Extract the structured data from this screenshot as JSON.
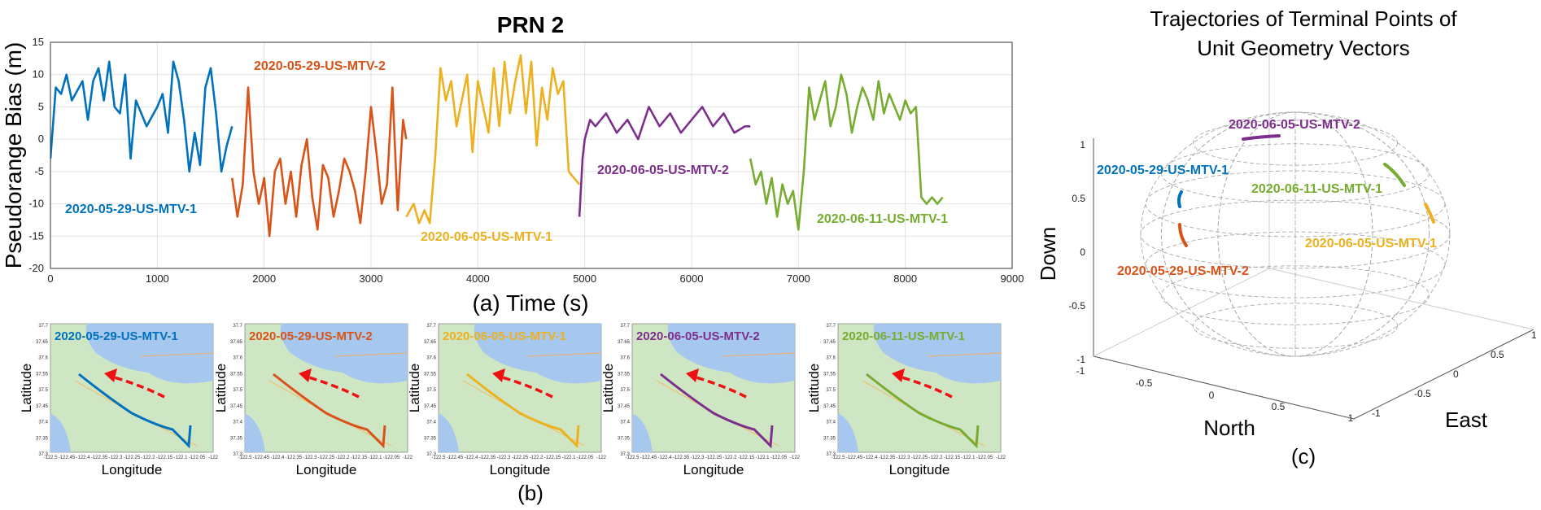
{
  "chart_data": [
    {
      "type": "line",
      "panel_label": "(a)",
      "title": "PRN 2",
      "xlabel": "Time (s)",
      "ylabel": "Pseudorange Bias (m)",
      "xlim": [
        0,
        9000
      ],
      "ylim": [
        -20,
        15
      ],
      "xticks": [
        0,
        1000,
        2000,
        3000,
        4000,
        5000,
        6000,
        7000,
        8000,
        9000
      ],
      "yticks": [
        15,
        10,
        5,
        0,
        -5,
        -10,
        -15,
        -20
      ],
      "grid": true,
      "series": [
        {
          "name": "2020-05-29-US-MTV-1",
          "color": "#0072BD",
          "x": [
            0,
            50,
            100,
            150,
            200,
            300,
            350,
            400,
            450,
            500,
            550,
            600,
            650,
            700,
            750,
            800,
            900,
            1000,
            1050,
            1100,
            1150,
            1200,
            1250,
            1300,
            1350,
            1400,
            1450,
            1500,
            1550,
            1600,
            1650,
            1700
          ],
          "y": [
            -3,
            8,
            7,
            10,
            6,
            9,
            3,
            9,
            11,
            6,
            12,
            5,
            4,
            10,
            -3,
            6,
            2,
            5,
            7,
            1,
            12,
            9,
            3,
            -5,
            1,
            -4,
            8,
            11,
            4,
            -5,
            -1,
            2
          ]
        },
        {
          "name": "2020-05-29-US-MTV-2",
          "color": "#D95319",
          "x": [
            1700,
            1750,
            1800,
            1850,
            1900,
            1950,
            2000,
            2050,
            2100,
            2150,
            2200,
            2250,
            2300,
            2350,
            2400,
            2450,
            2500,
            2550,
            2600,
            2650,
            2700,
            2750,
            2800,
            2850,
            2900,
            2950,
            3000,
            3050,
            3100,
            3150,
            3200,
            3250,
            3300,
            3330
          ],
          "y": [
            -6,
            -12,
            -7,
            8,
            -5,
            -10,
            -6,
            -15,
            -5,
            -3,
            -10,
            -5,
            -12,
            -4,
            0,
            -9,
            -14,
            -4,
            -6,
            -12,
            -8,
            -3,
            -5,
            -8,
            -13,
            -5,
            5,
            -2,
            -10,
            -7,
            8,
            -11,
            3,
            0
          ]
        },
        {
          "name": "2020-06-05-US-MTV-1",
          "color": "#EDB120",
          "x": [
            3330,
            3400,
            3450,
            3500,
            3550,
            3600,
            3650,
            3700,
            3750,
            3800,
            3850,
            3900,
            3950,
            4000,
            4100,
            4150,
            4200,
            4250,
            4300,
            4350,
            4400,
            4450,
            4500,
            4550,
            4600,
            4650,
            4700,
            4750,
            4800,
            4850,
            4900,
            4950
          ],
          "y": [
            -12,
            -10,
            -13,
            -11,
            -13,
            -3,
            11,
            6,
            9,
            2,
            6,
            10,
            -2,
            9,
            1,
            11,
            2,
            12,
            4,
            9,
            13,
            4,
            12,
            -1,
            8,
            3,
            11,
            7,
            9,
            -5,
            -6,
            -7
          ]
        },
        {
          "name": "2020-06-05-US-MTV-2",
          "color": "#7E2F8E",
          "x": [
            4950,
            4980,
            5000,
            5050,
            5100,
            5200,
            5300,
            5400,
            5500,
            5600,
            5700,
            5800,
            5900,
            6000,
            6100,
            6200,
            6300,
            6400,
            6500,
            6550
          ],
          "y": [
            -12,
            -3,
            0,
            3,
            2,
            4,
            1,
            3,
            0,
            5,
            2,
            4,
            1,
            3,
            5,
            2,
            4,
            1,
            2,
            2
          ]
        },
        {
          "name": "2020-06-11-US-MTV-1",
          "color": "#77AC30",
          "x": [
            6550,
            6600,
            6650,
            6700,
            6750,
            6800,
            6850,
            6900,
            6950,
            7000,
            7050,
            7100,
            7150,
            7200,
            7250,
            7300,
            7350,
            7400,
            7450,
            7500,
            7550,
            7600,
            7650,
            7700,
            7750,
            7800,
            7850,
            7900,
            7950,
            8000,
            8050,
            8100,
            8150,
            8200,
            8250,
            8300,
            8350
          ],
          "y": [
            -3,
            -7,
            -5,
            -10,
            -6,
            -12,
            -7,
            -10,
            -8,
            -14,
            -5,
            8,
            3,
            6,
            9,
            2,
            5,
            10,
            7,
            1,
            5,
            8,
            6,
            3,
            9,
            4,
            7,
            5,
            3,
            6,
            4,
            5,
            -9,
            -10,
            -9,
            -10,
            -9
          ]
        }
      ],
      "annotations": [
        "2020-05-29-US-MTV-1",
        "2020-05-29-US-MTV-2",
        "2020-06-05-US-MTV-1",
        "2020-06-05-US-MTV-2",
        "2020-06-11-US-MTV-1"
      ]
    },
    {
      "type": "map",
      "panel_label": "(b)",
      "xlabel": "Longitude",
      "ylabel": "Latitude",
      "xticks": [
        "-122.5",
        "-122.45",
        "-122.4",
        "-122.35",
        "-122.3",
        "-122.25",
        "-122.2",
        "-122.15",
        "-122.1",
        "-122.05",
        "-122"
      ],
      "yticks": [
        "37.7",
        "37.65",
        "37.6",
        "37.55",
        "37.5",
        "37.45",
        "37.4",
        "37.35",
        "37.3"
      ],
      "maps": [
        {
          "name": "2020-05-29-US-MTV-1",
          "color": "#0072BD"
        },
        {
          "name": "2020-05-29-US-MTV-2",
          "color": "#D95319"
        },
        {
          "name": "2020-06-05-US-MTV-1",
          "color": "#EDB120"
        },
        {
          "name": "2020-06-05-US-MTV-2",
          "color": "#7E2F8E"
        },
        {
          "name": "2020-06-11-US-MTV-1",
          "color": "#77AC30"
        }
      ]
    },
    {
      "type": "3d-sphere",
      "panel_label": "(c)",
      "title_line1": "Trajectories of Terminal Points of",
      "title_line2": "Unit Geometry Vectors",
      "xlabel": "North",
      "ylabel": "East",
      "zlabel": "Down",
      "north_ticks": [
        "-1",
        "-0.5",
        "0",
        "0.5",
        "1"
      ],
      "east_ticks": [
        "1",
        "0.5",
        "0",
        "-0.5",
        "-1"
      ],
      "down_ticks": [
        "1",
        "0.5",
        "0",
        "-0.5",
        "-1"
      ],
      "arcs": [
        {
          "name": "2020-06-05-US-MTV-2",
          "color": "#7E2F8E"
        },
        {
          "name": "2020-05-29-US-MTV-1",
          "color": "#0072BD"
        },
        {
          "name": "2020-06-11-US-MTV-1",
          "color": "#77AC30"
        },
        {
          "name": "2020-06-05-US-MTV-1",
          "color": "#EDB120"
        },
        {
          "name": "2020-05-29-US-MTV-2",
          "color": "#D95319"
        }
      ]
    }
  ]
}
